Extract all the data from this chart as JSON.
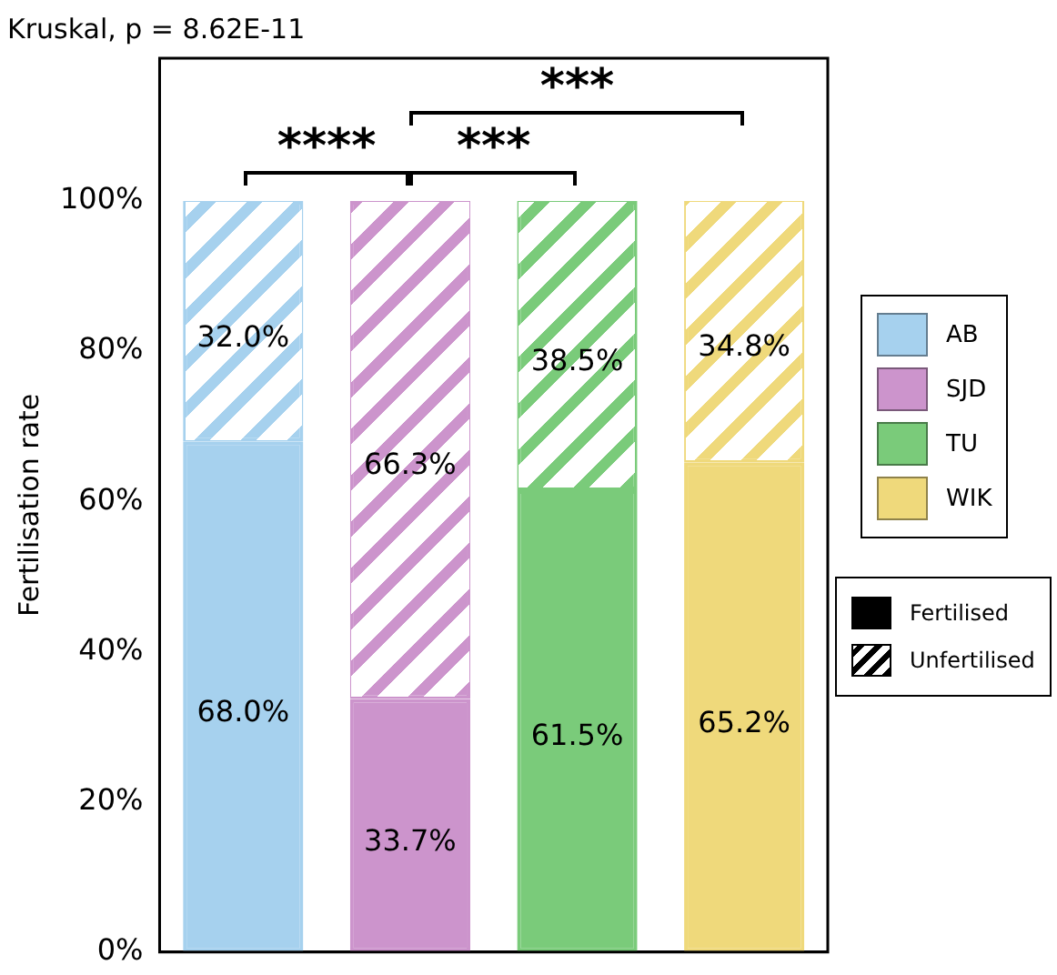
{
  "chart_data": {
    "type": "bar",
    "title": "Kruskal, p = 8.62E-11",
    "ylabel": "Fertilisation rate",
    "categories": [
      null,
      null,
      null,
      null
    ],
    "stacked": true,
    "ylim": [
      0,
      119
    ],
    "yticks": [
      {
        "value": 0,
        "label": "0%"
      },
      {
        "value": 20,
        "label": "20%"
      },
      {
        "value": 40,
        "label": "40%"
      },
      {
        "value": 60,
        "label": "60%"
      },
      {
        "value": 80,
        "label": "80%"
      },
      {
        "value": 100,
        "label": "100%"
      }
    ],
    "tick_labels": "y",
    "grid": false,
    "legend": "right",
    "series": [
      {
        "name": "AB",
        "color": "#a6d1ee",
        "values": [
          68.0,
          null,
          null,
          null
        ],
        "value_labels": [
          "68.0%",
          null,
          null,
          null
        ]
      },
      {
        "color": "#a6d1ee",
        "values": [
          32.0,
          null,
          null,
          null
        ],
        "value_labels": [
          "32.0%",
          null,
          null,
          null
        ]
      },
      {
        "name": "SJD",
        "color": "#cc94cc",
        "values": [
          null,
          33.7,
          null,
          null
        ],
        "value_labels": [
          null,
          "33.7%",
          null,
          null
        ]
      },
      {
        "color": "#cc94cc",
        "values": [
          null,
          66.3,
          null,
          null
        ],
        "value_labels": [
          null,
          "66.3%",
          null,
          null
        ]
      },
      {
        "name": "TU",
        "color": "#7acb7a",
        "values": [
          null,
          null,
          61.5,
          null
        ],
        "value_labels": [
          null,
          null,
          "61.5%",
          null
        ]
      },
      {
        "color": "#7acb7a",
        "values": [
          null,
          null,
          38.5,
          null
        ],
        "value_labels": [
          null,
          null,
          "38.5%",
          null
        ]
      },
      {
        "name": "WIK",
        "color": "#efd97b",
        "values": [
          null,
          null,
          null,
          65.2
        ],
        "value_labels": [
          null,
          null,
          null,
          "65.2%"
        ]
      },
      {
        "color": "#efd97b",
        "values": [
          null,
          null,
          null,
          34.8
        ],
        "value_labels": [
          null,
          null,
          null,
          "34.8%"
        ]
      }
    ],
    "annotations": [
      "****",
      "***",
      "***",
      "Fertilised",
      "Unfertilised"
    ]
  }
}
